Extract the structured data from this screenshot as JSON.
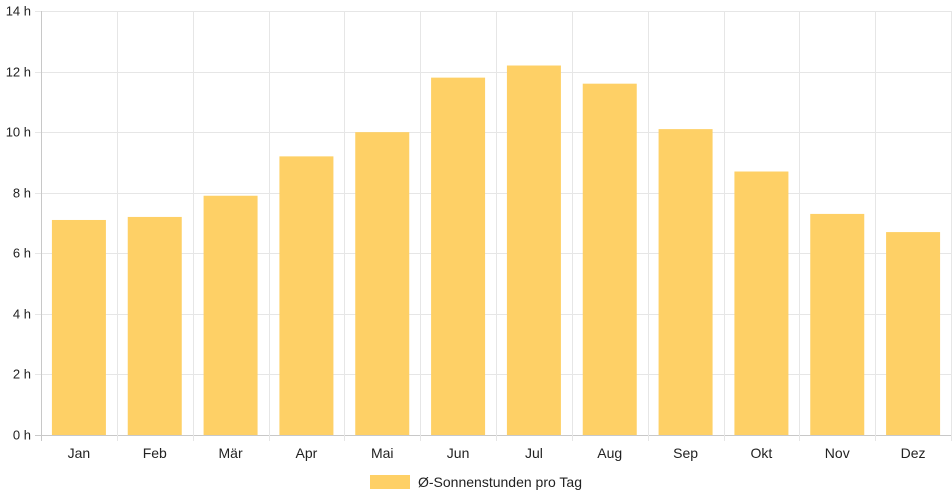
{
  "chart_data": {
    "type": "bar",
    "categories": [
      "Jan",
      "Feb",
      "Mär",
      "Apr",
      "Mai",
      "Jun",
      "Jul",
      "Aug",
      "Sep",
      "Okt",
      "Nov",
      "Dez"
    ],
    "series": [
      {
        "name": "Ø-Sonnenstunden pro Tag",
        "values": [
          7.1,
          7.2,
          7.9,
          9.2,
          10.0,
          11.8,
          12.2,
          11.6,
          10.1,
          8.7,
          7.3,
          6.7
        ],
        "color": "#fed066"
      }
    ],
    "y_ticks": [
      "0 h",
      "2 h",
      "4 h",
      "6 h",
      "8 h",
      "10 h",
      "12 h",
      "14 h"
    ],
    "ylim": [
      0,
      14
    ],
    "grid": true,
    "legend": "bottom-center"
  }
}
